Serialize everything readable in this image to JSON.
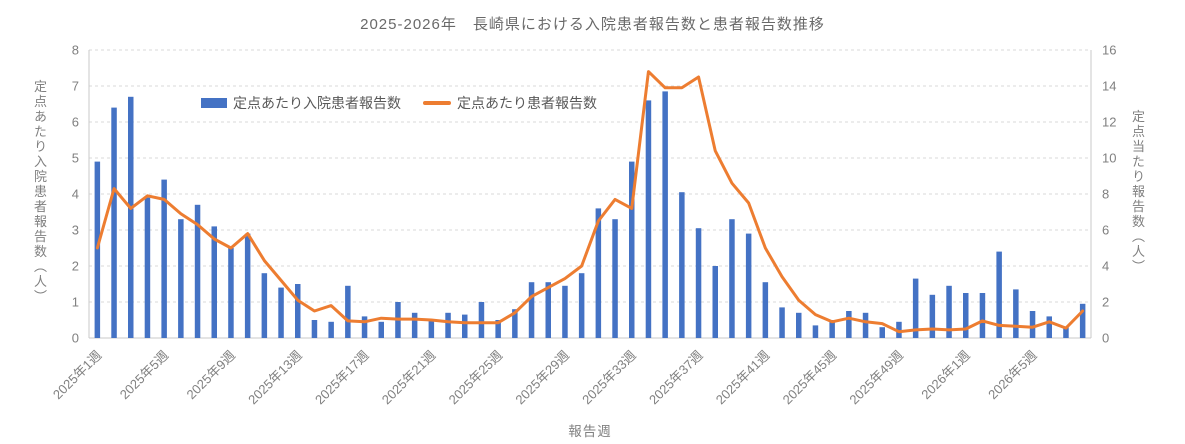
{
  "title": "2025-2026年　長崎県における入院患者報告数と患者報告数推移",
  "legend": {
    "bar_label": "定点あたり入院患者報告数",
    "line_label": "定点あたり患者報告数"
  },
  "axes": {
    "left": {
      "title": "定点あたり入院患者報告数（人）",
      "ticks": [
        0,
        1,
        2,
        3,
        4,
        5,
        6,
        7,
        8
      ],
      "range": [
        0,
        8
      ]
    },
    "right": {
      "title": "定点当たり報告数（人）",
      "ticks": [
        0,
        2,
        4,
        6,
        8,
        10,
        12,
        14,
        16
      ],
      "range": [
        0,
        16
      ]
    },
    "x": {
      "title": "報告週",
      "tick_every": 4,
      "visible_tick_labels": [
        "2025年1週",
        "2025年5週",
        "2025年9週",
        "2025年13週",
        "2025年17週",
        "2025年21週",
        "2025年25週",
        "2025年29週",
        "2025年33週",
        "2025年37週",
        "2025年41週",
        "2025年45週",
        "2025年49週",
        "2026年1週",
        "2026年5週"
      ]
    }
  },
  "colors": {
    "bar": "#4472C4",
    "line": "#ED7D31",
    "grid": "#d9d9d9",
    "axis_line": "#c9c9c9",
    "tick_text": "#808080",
    "title_text": "#696969",
    "legend_text": "#595959"
  },
  "chart_data": {
    "type": "bar+line combo",
    "title": "2025-2026年　長崎県における入院患者報告数と患者報告数推移",
    "xlabel": "報告週",
    "left_ylabel": "定点あたり入院患者報告数（人）",
    "right_ylabel": "定点当たり報告数（人）",
    "left_ylim": [
      0,
      8
    ],
    "right_ylim": [
      0,
      16
    ],
    "grid": "horizontal dashed",
    "legend_position": "top inside plot",
    "categories": [
      "2025年1週",
      "2025年2週",
      "2025年3週",
      "2025年4週",
      "2025年5週",
      "2025年6週",
      "2025年7週",
      "2025年8週",
      "2025年9週",
      "2025年10週",
      "2025年11週",
      "2025年12週",
      "2025年13週",
      "2025年14週",
      "2025年15週",
      "2025年16週",
      "2025年17週",
      "2025年18週",
      "2025年19週",
      "2025年20週",
      "2025年21週",
      "2025年22週",
      "2025年23週",
      "2025年24週",
      "2025年25週",
      "2025年26週",
      "2025年27週",
      "2025年28週",
      "2025年29週",
      "2025年30週",
      "2025年31週",
      "2025年32週",
      "2025年33週",
      "2025年34週",
      "2025年35週",
      "2025年36週",
      "2025年37週",
      "2025年38週",
      "2025年39週",
      "2025年40週",
      "2025年41週",
      "2025年42週",
      "2025年43週",
      "2025年44週",
      "2025年45週",
      "2025年46週",
      "2025年47週",
      "2025年48週",
      "2025年49週",
      "2025年50週",
      "2025年51週",
      "2025年52週",
      "2026年1週",
      "2026年2週",
      "2026年3週",
      "2026年4週",
      "2026年5週",
      "2026年6週",
      "2026年7週",
      "2026年8週"
    ],
    "series": [
      {
        "name": "定点あたり入院患者報告数",
        "type": "bar",
        "axis": "left",
        "values": [
          4.9,
          6.4,
          6.7,
          3.9,
          4.4,
          3.3,
          3.7,
          3.1,
          2.5,
          2.9,
          1.8,
          1.4,
          1.5,
          0.5,
          0.45,
          1.45,
          0.6,
          0.45,
          1.0,
          0.7,
          0.5,
          0.7,
          0.65,
          1.0,
          0.5,
          0.8,
          1.55,
          1.55,
          1.45,
          1.8,
          3.6,
          3.3,
          4.9,
          6.6,
          6.85,
          4.05,
          3.05,
          2.0,
          3.3,
          2.9,
          1.55,
          0.85,
          0.7,
          0.35,
          0.5,
          0.75,
          0.7,
          0.3,
          0.45,
          1.65,
          1.2,
          1.45,
          1.25,
          1.25,
          2.4,
          1.35,
          0.75,
          0.6,
          0.3,
          0.95
        ]
      },
      {
        "name": "定点あたり患者報告数",
        "type": "line",
        "axis": "right",
        "values": [
          5.0,
          8.3,
          7.2,
          7.9,
          7.7,
          6.9,
          6.3,
          5.5,
          5.0,
          5.8,
          4.3,
          3.2,
          2.1,
          1.5,
          1.8,
          0.95,
          0.9,
          1.1,
          1.05,
          1.05,
          1.0,
          0.9,
          0.85,
          0.85,
          0.85,
          1.4,
          2.3,
          2.8,
          3.3,
          4.0,
          6.5,
          7.7,
          7.2,
          14.8,
          13.9,
          13.9,
          14.5,
          10.4,
          8.6,
          7.5,
          5.0,
          3.4,
          2.1,
          1.3,
          0.9,
          1.1,
          0.9,
          0.8,
          0.35,
          0.45,
          0.5,
          0.45,
          0.5,
          0.95,
          0.7,
          0.65,
          0.6,
          0.9,
          0.55,
          1.5
        ]
      }
    ]
  }
}
